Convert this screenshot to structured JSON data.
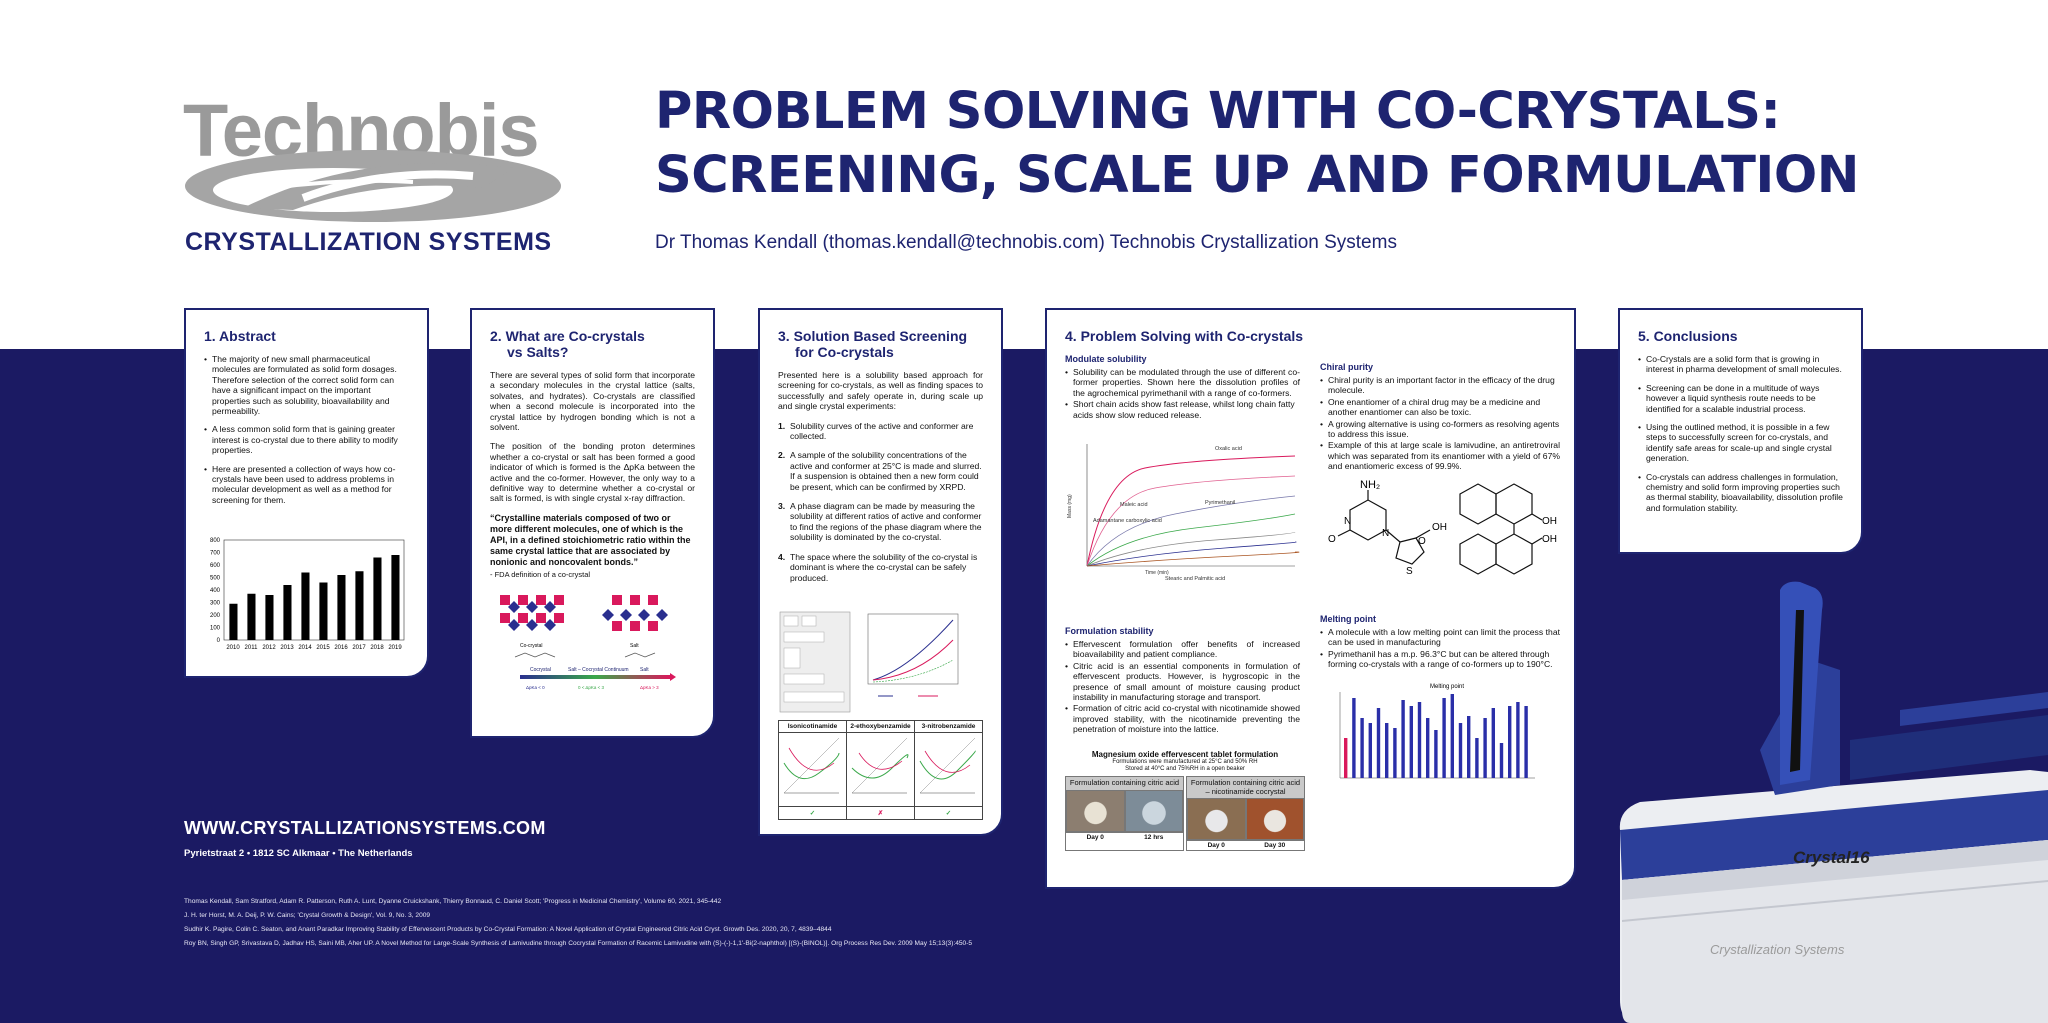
{
  "logo": {
    "word": "Technobis",
    "sub": "CRYSTALLIZATION SYSTEMS"
  },
  "title": {
    "line1": "PROBLEM SOLVING WITH CO-CRYSTALS:",
    "line2": "SCREENING, SCALE UP AND FORMULATION"
  },
  "author": "Dr Thomas Kendall (thomas.kendall@technobis.com) Technobis Crystallization Systems",
  "colors": {
    "navy": "#1b1a63",
    "title_blue": "#1e2470",
    "logo_grey": "#9a9a9a",
    "magenta": "#d9195c"
  },
  "abstract": {
    "heading": "1. Abstract",
    "bullets": [
      "The majority of new small pharmaceutical molecules are formulated as solid form dosages. Therefore selection of the correct solid form can have a significant impact on the important properties such as solubility, bioavailability and permeability.",
      "A less common solid form that is gaining greater interest is co-crystal due to there ability to modify properties.",
      "Here are presented a collection of ways how co-crystals have been used to address problems in molecular development as well as a method for screening for them."
    ]
  },
  "chart_data": {
    "type": "bar",
    "categories": [
      "2010",
      "2011",
      "2012",
      "2013",
      "2014",
      "2015",
      "2016",
      "2017",
      "2018",
      "2019"
    ],
    "series": [
      {
        "values": [
          290,
          370,
          360,
          440,
          540,
          460,
          520,
          550,
          660,
          680
        ]
      }
    ],
    "yticks": [
      "0",
      "100",
      "200",
      "300",
      "400",
      "500",
      "600",
      "700",
      "800"
    ],
    "ylim": [
      0,
      800
    ],
    "title": "",
    "xlabel": "",
    "ylabel": ""
  },
  "what_are": {
    "heading_line1": "2. What are Co-crystals",
    "heading_line2": "vs Salts?",
    "para1": "There are several types of solid form that incorporate a secondary molecules in the crystal lattice (salts, solvates, and hydrates). Co-crystals are classified when a second molecule is incorporated into the crystal lattice by hydrogen bonding which is not a solvent.",
    "para2": "The position of the bonding proton determines whether a co-crystal or salt has been formed a good indicator of which is formed is the ΔpKa between the active and the co-former. However, the only way to a definitive way to determine whether a co-crystal or salt is formed, is with single crystal x-ray diffraction.",
    "quote": "“Crystalline materials composed of two or more different molecules, one of which is the API, in a defined stoichiometric ratio within the same crystal lattice that are associated by nonionic and noncovalent bonds.”",
    "quote_source": "- FDA definition of a co-crystal",
    "label_cocrystal": "Co-crystal",
    "label_salt": "Salt",
    "continuum_left": "Cocrystal",
    "continuum_mid": "Salt – Cocrystal Continuum",
    "continuum_right": "Salt",
    "continuum_ends": [
      "ΔpKa < 0",
      "0 < ΔpKa < 3",
      "ΔpKa > 3"
    ]
  },
  "screening": {
    "heading_line1": "3. Solution Based Screening",
    "heading_line2": "for Co-crystals",
    "intro": "Presented here is a solubility based approach for screening for co-crystals, as well as finding spaces to successfully and safely operate in, during scale up and single crystal experiments:",
    "steps": [
      {
        "num": "1.",
        "text": "Solubility curves of the active and conformer are collected."
      },
      {
        "num": "2.",
        "text": "A sample of the solubility concentrations of the active and conformer at 25°C is made and slurred. If a suspension is obtained then a new form could be present, which can be confirmed by XRPD."
      },
      {
        "num": "3.",
        "text": "A phase diagram can be made by measuring the solubility at different ratios of active and conformer to find the regions of the phase diagram where the solubility is dominated by the co-crystal."
      },
      {
        "num": "4.",
        "text": "The space where the solubility of the co-crystal is dominant is where the co-crystal can be safely produced."
      }
    ],
    "table_headers": [
      "Isonicotinamide",
      "2-ethoxybenzamide",
      "3-nitrobenzamide"
    ],
    "table_results": [
      "✓",
      "✗",
      "✓"
    ]
  },
  "problem": {
    "heading": "4. Problem Solving with Co-crystals",
    "modulate_heading": "Modulate solubility",
    "modulate_bullets": [
      "Solubility can be modulated through the use of different co-former properties. Shown here the dissolution profiles of the agrochemical pyrimethanil with a range of co-formers.",
      "Short chain acids show fast release, whilst long chain fatty acids show slow reduced release."
    ],
    "chart_labels": [
      "Oxalic acid",
      "Maleic acid",
      "Pyrimethanil",
      "Adamantane carboxylic acid",
      "Stearic and Palmitic acid"
    ],
    "chart_axis_x": "Time (min)",
    "chart_axis_y": "Mass (mg)",
    "formulation_heading": "Formulation stability",
    "formulation_bullets": [
      "Effervescent formulation offer benefits of increased bioavailability and patient compliance.",
      "Citric acid is an essential components in formulation of effervescent products. However, is hygroscopic in the presence of small amount of moisture causing product instability in manufacturing storage and transport.",
      "Formation of citric acid co-crystal with nicotinamide showed improved stability, with the nicotinamide preventing the penetration of moisture into the lattice."
    ],
    "mg_title": "Magnesium oxide effervescent tablet formulation",
    "mg_sub1": "Formulations were manufactured at 25°C and 50% RH",
    "mg_sub2": "Stored at 40°C and 75%RH in a open beaker",
    "mg_col1": "Formulation containing citric acid",
    "mg_col2": "Formulation containing citric acid – nicotinamide cocrystal",
    "mg_caps": [
      "Day 0",
      "12 hrs",
      "Day 0",
      "Day 30"
    ],
    "chiral_heading": "Chiral purity",
    "chiral_bullets": [
      "Chiral purity is an important factor in the efficacy of the drug molecule.",
      "One enantiomer of a chiral drug may be a medicine and another enantiomer can also be toxic.",
      "A growing alternative is using co-formers as resolving agents to address this issue.",
      "Example of this at large scale is lamivudine, an antiretroviral which was separated from its enantiomer with a yield of 67% and enantiomeric excess of 99.9%."
    ],
    "chem_labels": [
      "NH₂",
      "N",
      "O",
      "N",
      "O",
      "S",
      "OH",
      "OH",
      "OH"
    ],
    "melting_heading": "Melting point",
    "melting_bullets": [
      "A molecule with a low melting point can limit the process that can be used in manufacturing",
      "Pyrimethanil has a m.p. 96.3°C but can be altered through forming co-crystals with a range of co-formers up to 190°C."
    ],
    "melting_chart_title": "Melting point"
  },
  "conclusions": {
    "heading": "5. Conclusions",
    "bullets": [
      "Co-Crystals are a solid form that is growing in interest in pharma development of small molecules.",
      "Screening can be done in a multitude of ways however a liquid synthesis route needs to be identified for a scalable industrial process.",
      "Using the outlined method, it is possible in a few steps to successfully screen for co-crystals, and identify safe areas for scale-up and single crystal generation.",
      "Co-crystals can address challenges in formulation, chemistry and solid form improving properties such as thermal stability, bioavailability, dissolution profile and formulation stability."
    ]
  },
  "footer": {
    "website": "WWW.CRYSTALLIZATIONSYSTEMS.COM",
    "address": "Pyrietstraat 2  •  1812 SC Alkmaar  •  The Netherlands",
    "references": [
      "Thomas Kendall, Sam Stratford, Adam R. Patterson, Ruth A. Lunt, Dyanne Cruickshank, Thierry Bonnaud, C. Daniel Scott; 'Progress in Medicinal Chemistry', Volume 60, 2021, 345-442",
      "J. H. ter Horst, M. A. Deij, P. W. Cains; 'Crystal Growth & Design', Vol. 9, No. 3, 2009",
      "Sudhir K. Pagire, Colin C. Seaton, and Anant Paradkar Improving Stability of Effervescent Products by Co-Crystal Formation: A Novel Application of Crystal Engineered Citric Acid Cryst. Growth Des. 2020, 20, 7, 4839–4844",
      "Roy BN, Singh GP, Srivastava D, Jadhav HS, Saini MB, Aher UP. A Novel Method for Large-Scale Synthesis of Lamivudine through Cocrystal Formation of Racemic Lamivudine with (S)-(-)-1,1'-Bi(2-naphthol) [(S)-(BINOL)]. Org Process Res Dev. 2009 May 15;13(3):450-5"
    ]
  },
  "device": {
    "brand": "Crystal16",
    "brand2": "Crystallization Systems"
  }
}
